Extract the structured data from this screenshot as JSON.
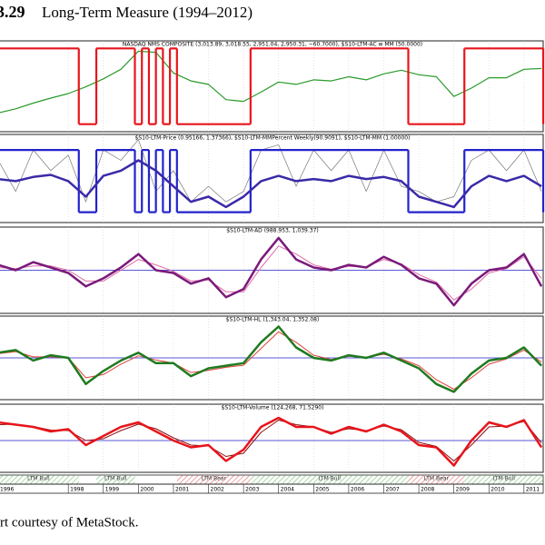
{
  "header": {
    "figure": "3.29",
    "title": "Long-Term Measure (1994–2012)"
  },
  "caption": "rt courtesy of MetaStock.",
  "chart_data": [
    {
      "type": "line",
      "title": "NASDAQ NMS COMPOSITE (3,013.89, 3,018.55, 2,951.04, 2,950.31, −60.7000), $S10-LTM-AC w MM (50.0000)",
      "log": true,
      "xlim": [
        1996,
        2011.6
      ],
      "ylim": [
        700,
        5000
      ],
      "y2lim": [
        -0.1,
        1.1
      ],
      "x": [
        1996,
        1996.5,
        1997,
        1997.5,
        1998,
        1998.5,
        1999,
        1999.5,
        2000,
        2000.5,
        2001,
        2001.5,
        2002,
        2002.5,
        2003,
        2003.5,
        2004,
        2004.5,
        2005,
        2005.5,
        2006,
        2006.5,
        2007,
        2007.5,
        2008,
        2008.5,
        2009,
        2009.5,
        2010,
        2010.5,
        2011,
        2011.5
      ],
      "series": [
        {
          "color": "#2a9a2a",
          "values": [
            1050,
            1150,
            1300,
            1450,
            1600,
            1850,
            2200,
            2700,
            4000,
            3900,
            2500,
            2100,
            1950,
            1400,
            1350,
            1650,
            2050,
            1950,
            2150,
            2100,
            2300,
            2150,
            2450,
            2650,
            2400,
            2300,
            1500,
            1800,
            2250,
            2250,
            2700,
            2750
          ]
        },
        {
          "color": "#e8141b",
          "step": true,
          "axis": "y2",
          "x": [
            1996,
            1998.3,
            1998.8,
            1999.9,
            2000.1,
            2000.3,
            2000.5,
            2000.7,
            2000.9,
            2001.1,
            2003.2,
            2007.7,
            2009.3,
            2011.55
          ],
          "values": [
            1,
            0,
            1,
            0,
            1,
            0,
            1,
            0,
            1,
            0,
            1,
            0,
            1,
            0
          ]
        }
      ]
    },
    {
      "type": "line",
      "title": "$S10-LTM-Price (0.95166, 1.37366), $S10-LTM-MMPercent Weekly(90.9091), $S10-LTM-MM (1.00000)",
      "xlim": [
        1996,
        2011.6
      ],
      "ylim": [
        0.6,
        1.45
      ],
      "x": [
        1996,
        1996.5,
        1997,
        1997.5,
        1998,
        1998.5,
        1999,
        1999.5,
        2000,
        2000.5,
        2001,
        2001.5,
        2002,
        2002.5,
        2003,
        2003.5,
        2004,
        2004.5,
        2005,
        2005.5,
        2006,
        2006.5,
        2007,
        2007.5,
        2008,
        2008.5,
        2009,
        2009.5,
        2010,
        2010.5,
        2011,
        2011.5
      ],
      "series": [
        {
          "color": "#777777",
          "width": 0.7,
          "values": [
            1.2,
            0.9,
            1.3,
            1.1,
            1.25,
            0.8,
            1.3,
            1.2,
            1.4,
            0.9,
            1.1,
            0.8,
            0.95,
            0.8,
            0.9,
            1.3,
            1.35,
            0.95,
            1.3,
            1.1,
            1.3,
            0.9,
            1.3,
            0.95,
            0.9,
            0.8,
            0.85,
            1.2,
            1.3,
            1.1,
            1.3,
            0.9
          ]
        },
        {
          "color": "#2222cc",
          "step": true,
          "x": [
            1996,
            1998.3,
            1998.8,
            1999.9,
            2000.1,
            2000.3,
            2000.5,
            2000.7,
            2000.9,
            2001.1,
            2003.2,
            2007.7,
            2009.3,
            2011.55
          ],
          "values": [
            1.3,
            0.7,
            1.3,
            0.7,
            1.3,
            0.7,
            1.3,
            0.7,
            1.3,
            0.7,
            1.3,
            0.7,
            1.3,
            0.7
          ]
        },
        {
          "color": "#3a2aa8",
          "width": 2.5,
          "values": [
            1.02,
            1,
            1.04,
            1.06,
            1,
            0.85,
            1.05,
            1.1,
            1.2,
            1.1,
            0.95,
            0.8,
            0.85,
            0.75,
            0.85,
            1,
            1.05,
            1,
            1.02,
            1,
            1.05,
            1.02,
            1.04,
            1,
            0.85,
            0.8,
            0.75,
            0.95,
            1.05,
            1,
            1.05,
            0.95
          ]
        }
      ]
    },
    {
      "type": "line",
      "title": "$S10-LTM-AD (988.953, 1,039.37)",
      "xlim": [
        1996,
        2011.6
      ],
      "ylim": [
        920,
        1080
      ],
      "reference": 1000,
      "x": [
        1996,
        1996.5,
        1997,
        1997.5,
        1998,
        1998.5,
        1999,
        1999.5,
        2000,
        2000.5,
        2001,
        2001.5,
        2002,
        2002.5,
        2003,
        2003.5,
        2004,
        2004.5,
        2005,
        2005.5,
        2006,
        2006.5,
        2007,
        2007.5,
        2008,
        2008.5,
        2009,
        2009.5,
        2010,
        2010.5,
        2011,
        2011.5
      ],
      "series": [
        {
          "color": "#e06aa8",
          "width": 1,
          "values": [
            1005,
            1003,
            1008,
            1008,
            1000,
            980,
            980,
            1000,
            1020,
            1010,
            998,
            980,
            982,
            960,
            960,
            1005,
            1045,
            1030,
            1010,
            1002,
            1007,
            1006,
            1020,
            1012,
            992,
            978,
            945,
            965,
            995,
            1003,
            1025,
            985
          ]
        },
        {
          "color": "#7a1a7a",
          "width": 2.5,
          "values": [
            1010,
            1000,
            1015,
            1005,
            995,
            970,
            985,
            1005,
            1030,
            1000,
            995,
            975,
            985,
            950,
            965,
            1020,
            1060,
            1020,
            1005,
            1000,
            1010,
            1005,
            1025,
            1010,
            985,
            975,
            935,
            975,
            1000,
            1005,
            1030,
            970
          ]
        }
      ]
    },
    {
      "type": "line",
      "title": "$S10-LTM-HL (1,343.04, 1,352.08)",
      "xlim": [
        1996,
        2011.6
      ],
      "ylim": [
        920,
        1080
      ],
      "reference": 1000,
      "x": [
        1996,
        1996.5,
        1997,
        1997.5,
        1998,
        1998.5,
        1999,
        1999.5,
        2000,
        2000.5,
        2001,
        2001.5,
        2002,
        2002.5,
        2003,
        2003.5,
        2004,
        2004.5,
        2005,
        2005.5,
        2006,
        2006.5,
        2007,
        2007.5,
        2008,
        2008.5,
        2009,
        2009.5,
        2010,
        2010.5,
        2011,
        2011.5
      ],
      "series": [
        {
          "color": "#e0403a",
          "width": 1,
          "values": [
            1008,
            1012,
            1002,
            1002,
            1000,
            962,
            968,
            988,
            1004,
            996,
            990,
            972,
            976,
            982,
            986,
            1018,
            1050,
            1030,
            1005,
            997,
            1003,
            1001,
            1007,
            998,
            985,
            958,
            940,
            962,
            988,
            998,
            1015,
            992
          ]
        },
        {
          "color": "#1e7a1e",
          "width": 2.5,
          "values": [
            1010,
            1015,
            995,
            1005,
            1000,
            950,
            975,
            995,
            1010,
            990,
            990,
            965,
            980,
            985,
            990,
            1030,
            1060,
            1020,
            1000,
            995,
            1005,
            1000,
            1010,
            995,
            980,
            950,
            935,
            970,
            995,
            1000,
            1020,
            985
          ]
        }
      ]
    },
    {
      "type": "line",
      "title": "$S10-LTM-Volume (124,268, 71.5290)",
      "xlim": [
        1996,
        2011.6
      ],
      "ylim": [
        930,
        1080
      ],
      "reference": 1000,
      "x": [
        1996,
        1996.5,
        1997,
        1997.5,
        1998,
        1998.5,
        1999,
        1999.5,
        2000,
        2000.5,
        2001,
        2001.5,
        2002,
        2002.5,
        2003,
        2003.5,
        2004,
        2004.5,
        2005,
        2005.5,
        2006,
        2006.5,
        2007,
        2007.5,
        2008,
        2008.5,
        2009,
        2009.5,
        2010,
        2010.5,
        2011,
        2011.5
      ],
      "series": [
        {
          "color": "#8a1010",
          "width": 1,
          "values": [
            1035,
            1036,
            1031,
            1023,
            1022,
            1000,
            1004,
            1022,
            1036,
            1026,
            1006,
            990,
            988,
            965,
            972,
            1018,
            1045,
            1035,
            1030,
            1018,
            1026,
            1022,
            1032,
            1024,
            996,
            987,
            955,
            990,
            1030,
            1032,
            1042,
            995
          ]
        },
        {
          "color": "#e8141b",
          "width": 2.5,
          "values": [
            1040,
            1035,
            1030,
            1020,
            1025,
            990,
            1010,
            1030,
            1040,
            1020,
            1000,
            985,
            990,
            955,
            980,
            1030,
            1050,
            1030,
            1030,
            1015,
            1030,
            1020,
            1035,
            1020,
            990,
            985,
            945,
            1000,
            1040,
            1030,
            1045,
            985
          ]
        }
      ],
      "regions": [
        {
          "label": "LTM Bull",
          "kind": "bull",
          "start": 1996,
          "end": 1998.3
        },
        {
          "label": "LTM Bull",
          "kind": "bull",
          "start": 1998.8,
          "end": 1999.9
        },
        {
          "label": "LTM Bear",
          "kind": "bear",
          "start": 2001.1,
          "end": 2003.2
        },
        {
          "label": "LTM Bull",
          "kind": "bull",
          "start": 2003.2,
          "end": 2007.7
        },
        {
          "label": "LTM Bear",
          "kind": "bear",
          "start": 2007.7,
          "end": 2009.3
        },
        {
          "label": "LTM Bull",
          "kind": "bull",
          "start": 2009.3,
          "end": 2011.55
        }
      ],
      "xticks": [
        1996,
        1998,
        1999,
        2000,
        2001,
        2002,
        2003,
        2004,
        2005,
        2006,
        2007,
        2008,
        2009,
        2010,
        2011
      ]
    }
  ]
}
